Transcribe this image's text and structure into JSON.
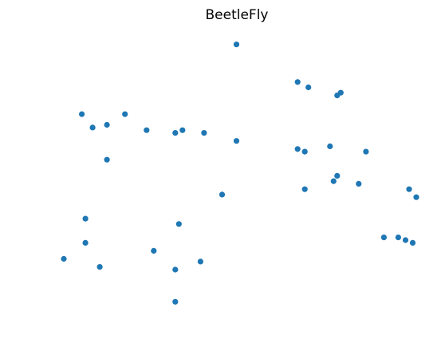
{
  "chart_data": {
    "type": "scatter",
    "title": "BeetleFly",
    "xlabel": "",
    "ylabel": "",
    "axes_visible": false,
    "grid": false,
    "point_color": "#1f77b4",
    "x": [
      0.5,
      0.67,
      0.7,
      0.78,
      0.79,
      0.07,
      0.19,
      0.1,
      0.14,
      0.25,
      0.33,
      0.35,
      0.41,
      0.5,
      0.67,
      0.69,
      0.76,
      0.86,
      0.14,
      0.46,
      0.69,
      0.77,
      0.78,
      0.84,
      0.98,
      1.0,
      0.08,
      0.34,
      0.08,
      0.27,
      0.02,
      0.12,
      0.4,
      0.33,
      0.91,
      0.95,
      0.97,
      0.99,
      0.33
    ],
    "y": [
      0.98,
      0.84,
      0.82,
      0.79,
      0.8,
      0.72,
      0.72,
      0.67,
      0.68,
      0.66,
      0.65,
      0.66,
      0.65,
      0.62,
      0.59,
      0.58,
      0.6,
      0.58,
      0.55,
      0.42,
      0.44,
      0.47,
      0.49,
      0.46,
      0.44,
      0.41,
      0.33,
      0.31,
      0.24,
      0.21,
      0.18,
      0.15,
      0.17,
      0.14,
      0.26,
      0.26,
      0.25,
      0.24,
      0.02
    ],
    "xlim": [
      0,
      1
    ],
    "ylim": [
      0,
      1
    ]
  }
}
